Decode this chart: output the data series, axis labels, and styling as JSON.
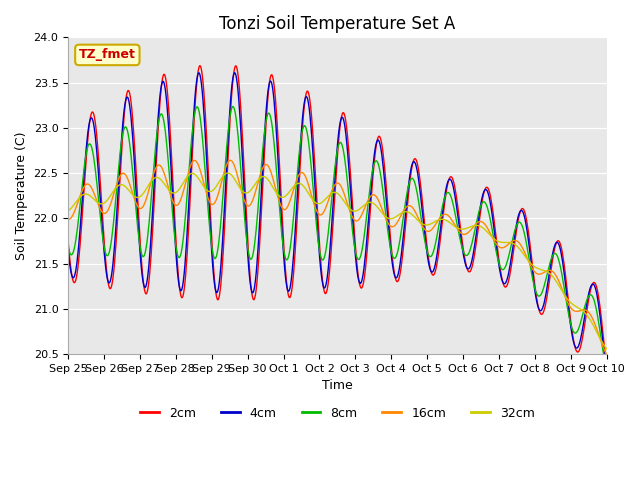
{
  "title": "Tonzi Soil Temperature Set A",
  "xlabel": "Time",
  "ylabel": "Soil Temperature (C)",
  "ylim": [
    20.5,
    24.0
  ],
  "annotation_text": "TZ_fmet",
  "annotation_bg": "#ffffcc",
  "annotation_border": "#ccaa00",
  "line_colors": {
    "2cm": "#ff0000",
    "4cm": "#0000cc",
    "8cm": "#00bb00",
    "16cm": "#ff8800",
    "32cm": "#cccc00"
  },
  "x_tick_labels": [
    "Sep 25",
    "Sep 26",
    "Sep 27",
    "Sep 28",
    "Sep 29",
    "Sep 30",
    "Oct 1",
    "Oct 2",
    "Oct 3",
    "Oct 4",
    "Oct 5",
    "Oct 6",
    "Oct 7",
    "Oct 8",
    "Oct 9",
    "Oct 10"
  ],
  "num_days": 15,
  "base_temp": 22.15,
  "legend_labels": [
    "2cm",
    "4cm",
    "8cm",
    "16cm",
    "32cm"
  ]
}
